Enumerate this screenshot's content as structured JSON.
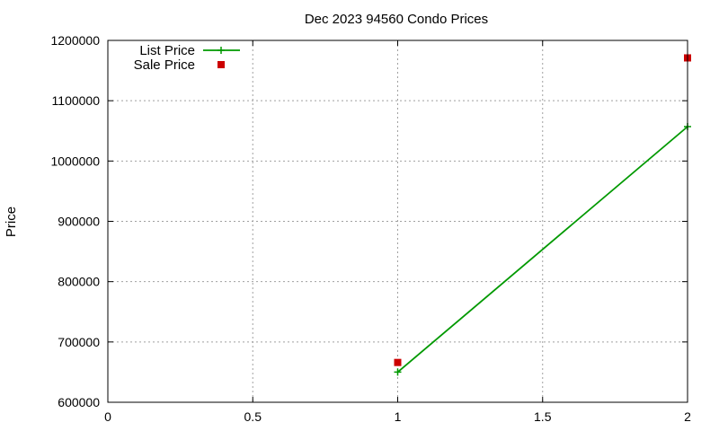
{
  "chart_data": {
    "type": "line",
    "title": "Dec 2023 94560 Condo Prices",
    "xlabel": "",
    "ylabel": "Price",
    "xlim": [
      0,
      2
    ],
    "ylim": [
      600000,
      1200000
    ],
    "x_ticks": [
      "0",
      "0.5",
      "1",
      "1.5",
      "2"
    ],
    "x_tick_values": [
      0,
      0.5,
      1,
      1.5,
      2
    ],
    "y_ticks": [
      "600000",
      "700000",
      "800000",
      "900000",
      "1000000",
      "1100000",
      "1200000"
    ],
    "y_tick_values": [
      600000,
      700000,
      800000,
      900000,
      1000000,
      1100000,
      1200000
    ],
    "grid": true,
    "legend_position": "top-left",
    "series": [
      {
        "name": "List Price",
        "style": "linespoints",
        "marker": "plus",
        "color": "#009900",
        "x": [
          1,
          2
        ],
        "y": [
          650000,
          1057000
        ]
      },
      {
        "name": "Sale Price",
        "style": "points",
        "marker": "square",
        "color": "#cc0000",
        "x": [
          1,
          2
        ],
        "y": [
          666000,
          1171000
        ]
      }
    ]
  }
}
